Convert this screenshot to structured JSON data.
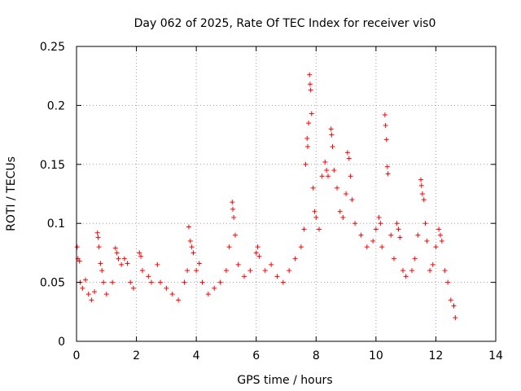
{
  "chart_data": {
    "type": "scatter",
    "title": "Day 062 of 2025, Rate Of TEC Index for receiver vis0",
    "xlabel": "GPS time / hours",
    "ylabel": "ROTI / TECUs",
    "xlim": [
      0,
      14
    ],
    "ylim": [
      0,
      0.25
    ],
    "x_ticks": [
      0,
      2,
      4,
      6,
      8,
      10,
      12,
      14
    ],
    "x_tick_labels": [
      "0",
      "2",
      "4",
      "6",
      "8",
      "10",
      "12",
      "14"
    ],
    "y_ticks": [
      0,
      0.05,
      0.1,
      0.15,
      0.2,
      0.25
    ],
    "y_tick_labels": [
      "0",
      "0.05",
      "0.1",
      "0.15",
      "0.2",
      "0.25"
    ],
    "grid": true,
    "marker": "+",
    "marker_color": "#ff0000",
    "series": [
      {
        "name": "ROTI",
        "points": [
          [
            0.02,
            0.08
          ],
          [
            0.05,
            0.07
          ],
          [
            0.1,
            0.068
          ],
          [
            0.12,
            0.05
          ],
          [
            0.2,
            0.045
          ],
          [
            0.3,
            0.052
          ],
          [
            0.4,
            0.04
          ],
          [
            0.5,
            0.035
          ],
          [
            0.6,
            0.042
          ],
          [
            0.7,
            0.092
          ],
          [
            0.72,
            0.088
          ],
          [
            0.75,
            0.08
          ],
          [
            0.8,
            0.066
          ],
          [
            0.85,
            0.06
          ],
          [
            0.9,
            0.05
          ],
          [
            1.0,
            0.04
          ],
          [
            1.2,
            0.05
          ],
          [
            1.3,
            0.079
          ],
          [
            1.35,
            0.075
          ],
          [
            1.4,
            0.07
          ],
          [
            1.5,
            0.065
          ],
          [
            1.6,
            0.07
          ],
          [
            1.7,
            0.066
          ],
          [
            1.8,
            0.05
          ],
          [
            1.9,
            0.045
          ],
          [
            2.1,
            0.075
          ],
          [
            2.15,
            0.072
          ],
          [
            2.2,
            0.06
          ],
          [
            2.4,
            0.055
          ],
          [
            2.5,
            0.05
          ],
          [
            2.7,
            0.065
          ],
          [
            2.8,
            0.05
          ],
          [
            3.0,
            0.045
          ],
          [
            3.2,
            0.04
          ],
          [
            3.4,
            0.035
          ],
          [
            3.6,
            0.05
          ],
          [
            3.7,
            0.06
          ],
          [
            3.75,
            0.097
          ],
          [
            3.8,
            0.085
          ],
          [
            3.85,
            0.08
          ],
          [
            3.9,
            0.075
          ],
          [
            4.0,
            0.06
          ],
          [
            4.1,
            0.066
          ],
          [
            4.2,
            0.05
          ],
          [
            4.4,
            0.04
          ],
          [
            4.6,
            0.045
          ],
          [
            4.8,
            0.05
          ],
          [
            5.0,
            0.06
          ],
          [
            5.1,
            0.08
          ],
          [
            5.2,
            0.118
          ],
          [
            5.22,
            0.112
          ],
          [
            5.25,
            0.105
          ],
          [
            5.3,
            0.09
          ],
          [
            5.4,
            0.065
          ],
          [
            5.6,
            0.055
          ],
          [
            5.8,
            0.06
          ],
          [
            6.0,
            0.075
          ],
          [
            6.05,
            0.08
          ],
          [
            6.1,
            0.072
          ],
          [
            6.3,
            0.06
          ],
          [
            6.5,
            0.065
          ],
          [
            6.7,
            0.055
          ],
          [
            6.9,
            0.05
          ],
          [
            7.1,
            0.06
          ],
          [
            7.3,
            0.07
          ],
          [
            7.5,
            0.08
          ],
          [
            7.6,
            0.095
          ],
          [
            7.65,
            0.15
          ],
          [
            7.7,
            0.172
          ],
          [
            7.72,
            0.165
          ],
          [
            7.75,
            0.185
          ],
          [
            7.78,
            0.226
          ],
          [
            7.8,
            0.218
          ],
          [
            7.82,
            0.213
          ],
          [
            7.85,
            0.193
          ],
          [
            7.9,
            0.13
          ],
          [
            7.95,
            0.11
          ],
          [
            8.0,
            0.105
          ],
          [
            8.1,
            0.095
          ],
          [
            8.2,
            0.14
          ],
          [
            8.3,
            0.152
          ],
          [
            8.35,
            0.145
          ],
          [
            8.4,
            0.14
          ],
          [
            8.5,
            0.18
          ],
          [
            8.52,
            0.175
          ],
          [
            8.55,
            0.165
          ],
          [
            8.6,
            0.145
          ],
          [
            8.7,
            0.13
          ],
          [
            8.8,
            0.11
          ],
          [
            8.9,
            0.105
          ],
          [
            9.0,
            0.125
          ],
          [
            9.05,
            0.16
          ],
          [
            9.1,
            0.155
          ],
          [
            9.15,
            0.14
          ],
          [
            9.2,
            0.12
          ],
          [
            9.3,
            0.1
          ],
          [
            9.5,
            0.09
          ],
          [
            9.7,
            0.08
          ],
          [
            9.9,
            0.085
          ],
          [
            10.0,
            0.095
          ],
          [
            10.1,
            0.105
          ],
          [
            10.15,
            0.1
          ],
          [
            10.2,
            0.08
          ],
          [
            10.3,
            0.192
          ],
          [
            10.32,
            0.183
          ],
          [
            10.35,
            0.171
          ],
          [
            10.38,
            0.148
          ],
          [
            10.4,
            0.142
          ],
          [
            10.5,
            0.09
          ],
          [
            10.6,
            0.07
          ],
          [
            10.7,
            0.1
          ],
          [
            10.75,
            0.095
          ],
          [
            10.8,
            0.088
          ],
          [
            10.9,
            0.06
          ],
          [
            11.0,
            0.055
          ],
          [
            11.2,
            0.06
          ],
          [
            11.3,
            0.07
          ],
          [
            11.4,
            0.09
          ],
          [
            11.5,
            0.137
          ],
          [
            11.52,
            0.132
          ],
          [
            11.55,
            0.125
          ],
          [
            11.6,
            0.12
          ],
          [
            11.65,
            0.1
          ],
          [
            11.7,
            0.085
          ],
          [
            11.8,
            0.06
          ],
          [
            11.9,
            0.065
          ],
          [
            12.0,
            0.08
          ],
          [
            12.1,
            0.095
          ],
          [
            12.15,
            0.09
          ],
          [
            12.2,
            0.085
          ],
          [
            12.3,
            0.06
          ],
          [
            12.4,
            0.05
          ],
          [
            12.5,
            0.035
          ],
          [
            12.6,
            0.03
          ],
          [
            12.65,
            0.02
          ]
        ]
      }
    ]
  }
}
